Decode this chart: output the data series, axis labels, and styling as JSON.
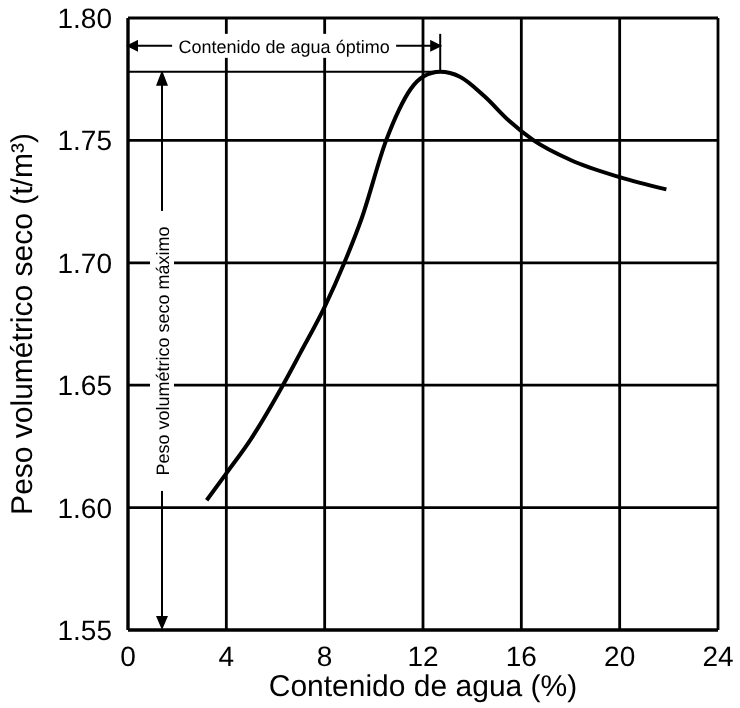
{
  "chart_data": {
    "type": "line",
    "xlabel": "Contenido de agua (%)",
    "ylabel": "Peso volumétrico seco (t/m³)",
    "x": [
      3.2,
      4,
      5,
      6.3,
      7,
      8,
      8.8,
      9.5,
      10.5,
      11,
      11.5,
      12,
      12.7,
      13.5,
      14.5,
      15.5,
      16.5,
      18,
      20,
      21.9
    ],
    "series": [
      {
        "color": "#000000",
        "values": [
          1.603,
          1.614,
          1.628,
          1.65,
          1.663,
          1.682,
          1.7,
          1.718,
          1.75,
          1.762,
          1.771,
          1.776,
          1.778,
          1.776,
          1.768,
          1.758,
          1.75,
          1.742,
          1.735,
          1.73
        ]
      }
    ],
    "xlim": [
      0,
      24
    ],
    "xticks": [
      0,
      4,
      8,
      12,
      16,
      20,
      24
    ],
    "ylim": [
      1.55,
      1.8
    ],
    "yticks": [
      1.55,
      {
        "value": 1.6,
        "label": "1.60"
      },
      1.65,
      {
        "value": 1.7,
        "label": "1.70"
      },
      1.75,
      {
        "value": 1.8,
        "label": "1.80"
      }
    ],
    "grid": true,
    "marker": "none",
    "line_style": "solid",
    "annotations": [
      "Contenido de agua óptimo",
      "Peso volumétrico seco máximo"
    ]
  }
}
